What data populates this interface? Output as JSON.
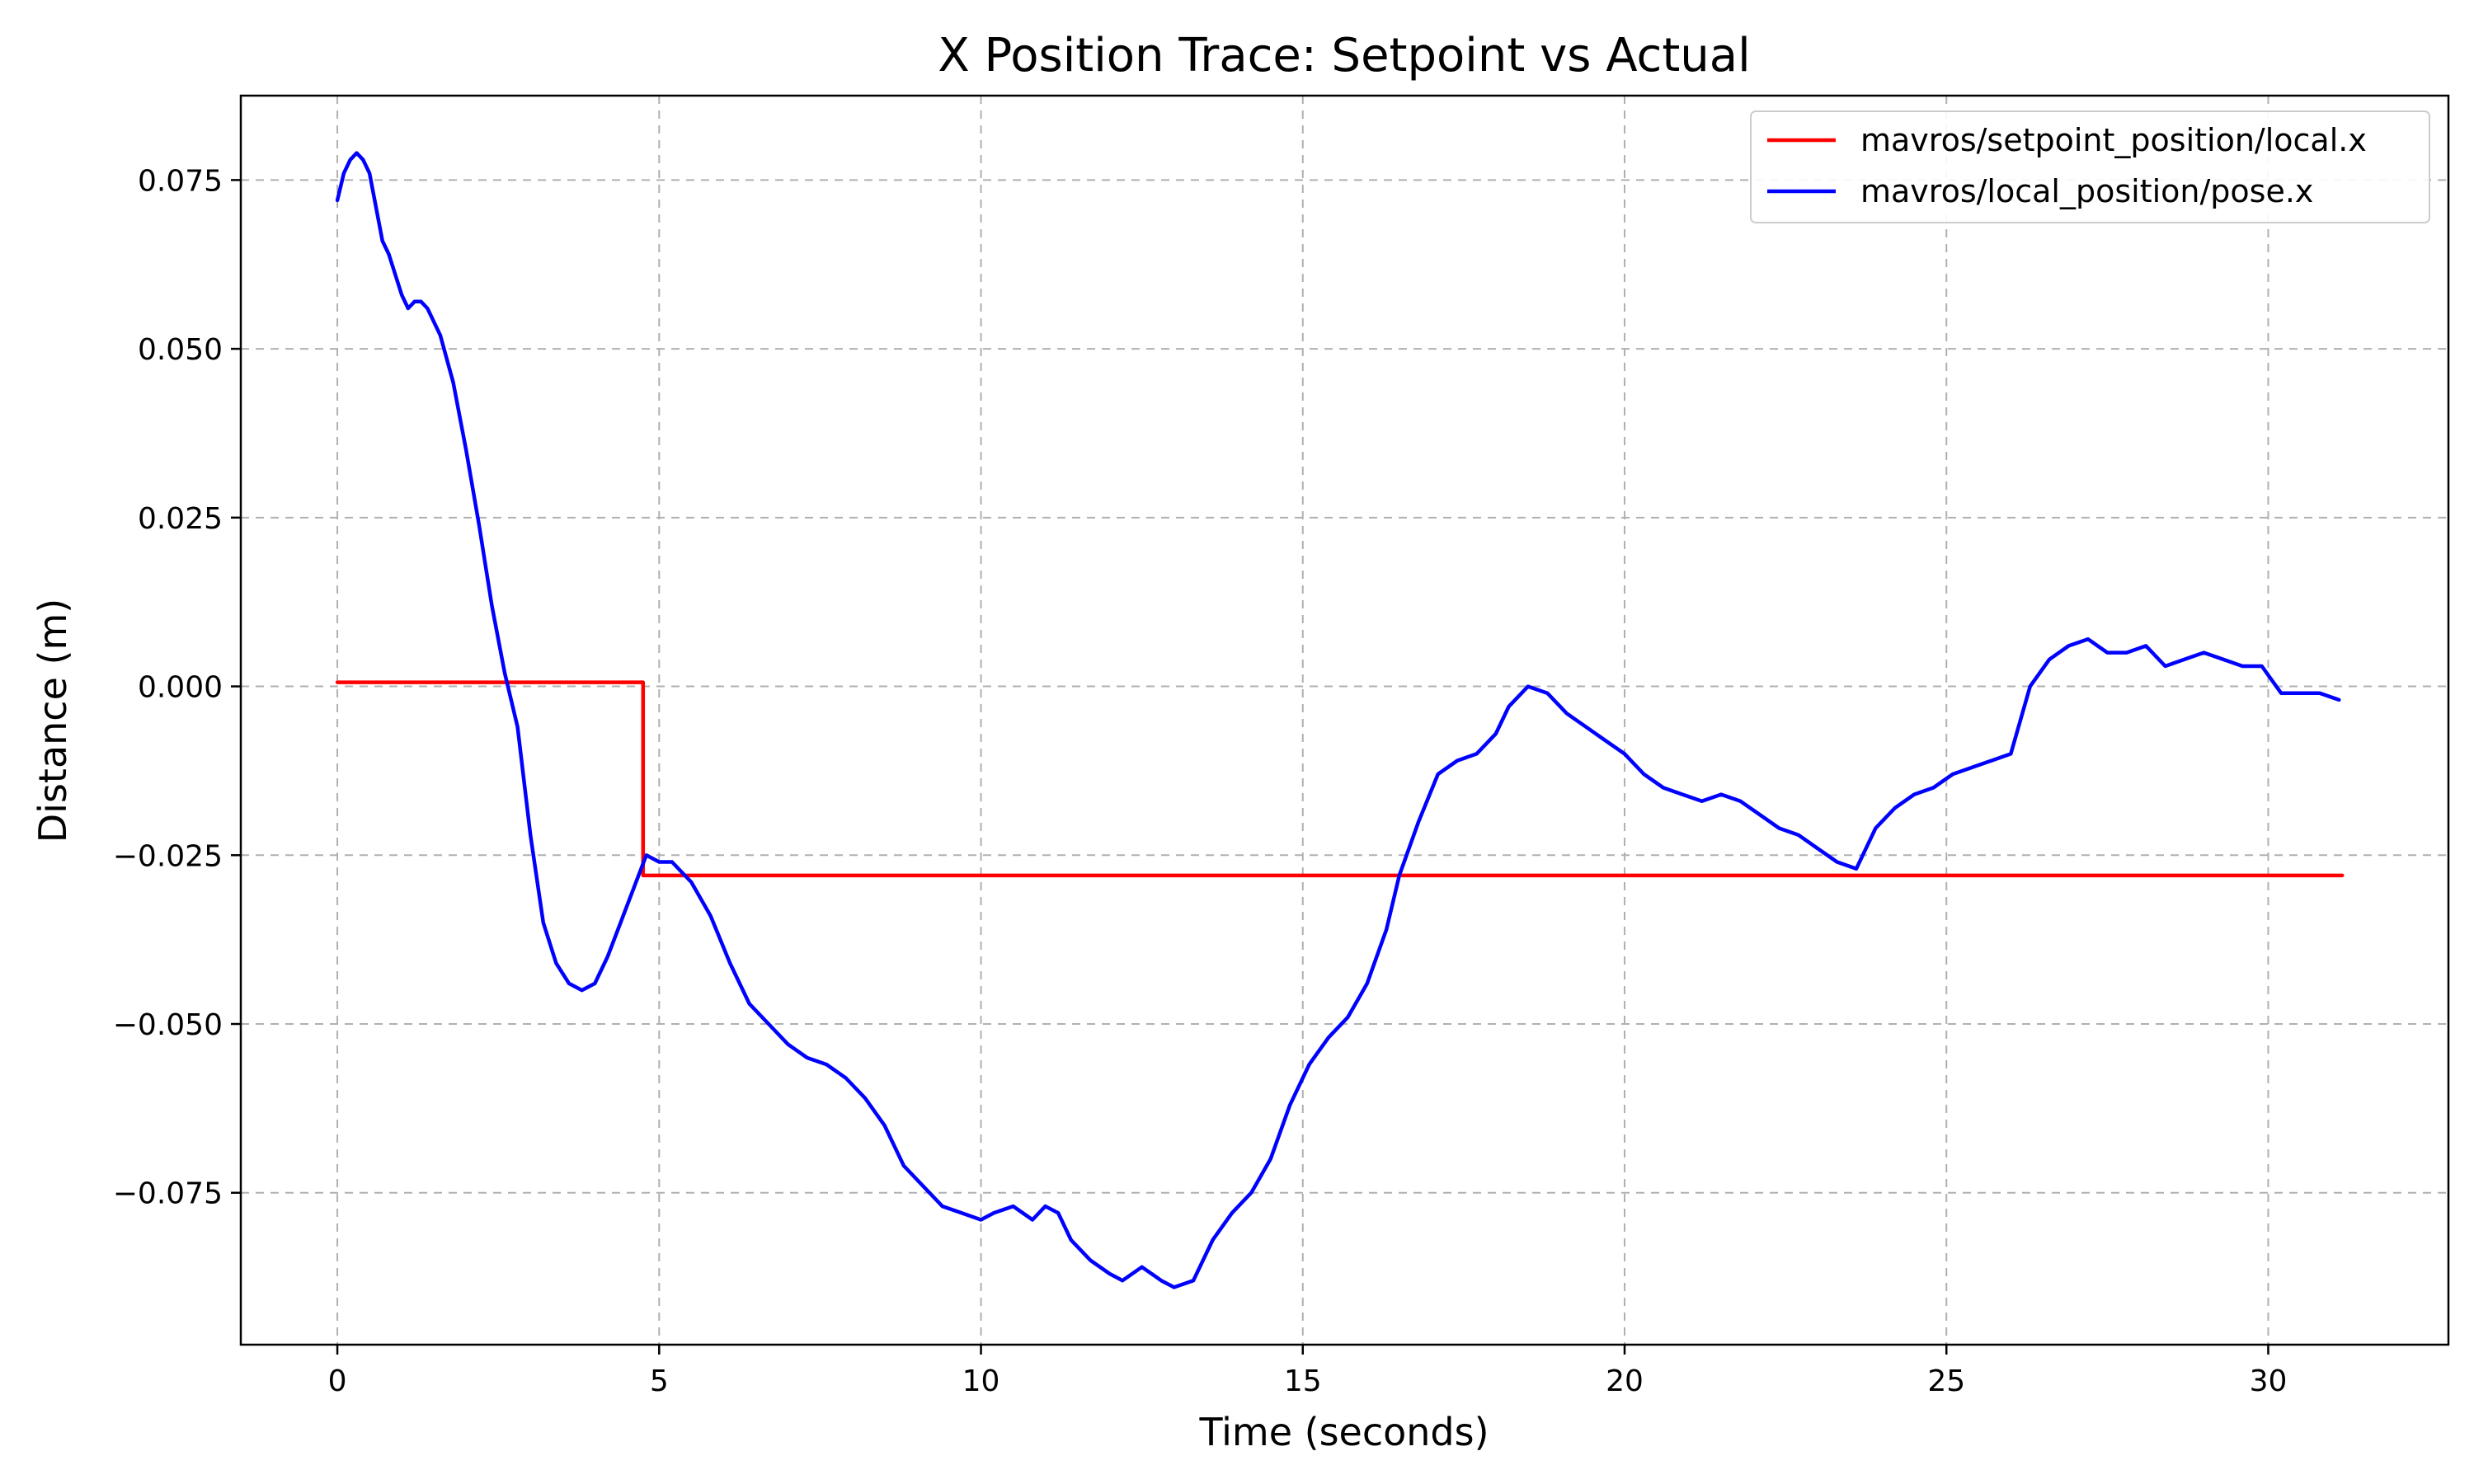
{
  "chart_data": {
    "type": "line",
    "title": "X Position Trace: Setpoint vs Actual",
    "xlabel": "Time (seconds)",
    "ylabel": "Distance (m)",
    "xlim": [
      -1.5,
      32.8
    ],
    "ylim": [
      -0.0975,
      0.0875
    ],
    "xticks": [
      0,
      5,
      10,
      15,
      20,
      25,
      30
    ],
    "xtick_labels": [
      "0",
      "5",
      "10",
      "15",
      "20",
      "25",
      "30"
    ],
    "yticks": [
      -0.075,
      -0.05,
      -0.025,
      0.0,
      0.025,
      0.05,
      0.075
    ],
    "ytick_labels": [
      "−0.075",
      "−0.050",
      "−0.025",
      "0.000",
      "0.025",
      "0.050",
      "0.075"
    ],
    "grid": true,
    "legend_position": "top-right",
    "series": [
      {
        "name": "mavros/setpoint_position/local.x",
        "color": "#ff0000",
        "x": [
          0.0,
          4.75,
          4.75,
          31.15
        ],
        "y": [
          0.0006,
          0.0006,
          -0.028,
          -0.028
        ]
      },
      {
        "name": "mavros/local_position/pose.x",
        "color": "#0000ff",
        "x": [
          0.0,
          0.1,
          0.2,
          0.3,
          0.4,
          0.5,
          0.6,
          0.7,
          0.8,
          0.9,
          1.0,
          1.1,
          1.2,
          1.3,
          1.4,
          1.5,
          1.6,
          1.8,
          2.0,
          2.2,
          2.4,
          2.6,
          2.8,
          3.0,
          3.2,
          3.4,
          3.6,
          3.8,
          4.0,
          4.2,
          4.4,
          4.6,
          4.8,
          5.0,
          5.2,
          5.5,
          5.8,
          6.1,
          6.4,
          6.7,
          7.0,
          7.3,
          7.6,
          7.9,
          8.2,
          8.5,
          8.8,
          9.1,
          9.4,
          9.7,
          10.0,
          10.2,
          10.5,
          10.8,
          11.0,
          11.2,
          11.4,
          11.7,
          12.0,
          12.2,
          12.5,
          12.8,
          13.0,
          13.3,
          13.6,
          13.9,
          14.2,
          14.5,
          14.8,
          15.1,
          15.4,
          15.7,
          16.0,
          16.3,
          16.5,
          16.8,
          17.1,
          17.4,
          17.7,
          18.0,
          18.2,
          18.5,
          18.8,
          19.1,
          19.4,
          19.7,
          20.0,
          20.3,
          20.6,
          20.9,
          21.2,
          21.5,
          21.8,
          22.1,
          22.4,
          22.7,
          23.0,
          23.3,
          23.6,
          23.9,
          24.2,
          24.5,
          24.8,
          25.1,
          25.4,
          25.7,
          26.0,
          26.3,
          26.6,
          26.9,
          27.2,
          27.5,
          27.8,
          28.1,
          28.4,
          28.7,
          29.0,
          29.3,
          29.6,
          29.9,
          30.2,
          30.5,
          30.8,
          31.1
        ],
        "y": [
          0.072,
          0.076,
          0.078,
          0.079,
          0.078,
          0.076,
          0.071,
          0.066,
          0.064,
          0.061,
          0.058,
          0.056,
          0.057,
          0.057,
          0.056,
          0.054,
          0.052,
          0.045,
          0.035,
          0.024,
          0.012,
          0.002,
          -0.006,
          -0.022,
          -0.035,
          -0.041,
          -0.044,
          -0.045,
          -0.044,
          -0.04,
          -0.035,
          -0.03,
          -0.025,
          -0.026,
          -0.026,
          -0.029,
          -0.034,
          -0.041,
          -0.047,
          -0.05,
          -0.053,
          -0.055,
          -0.056,
          -0.058,
          -0.061,
          -0.065,
          -0.071,
          -0.074,
          -0.077,
          -0.078,
          -0.079,
          -0.078,
          -0.077,
          -0.079,
          -0.077,
          -0.078,
          -0.082,
          -0.085,
          -0.087,
          -0.088,
          -0.086,
          -0.088,
          -0.089,
          -0.088,
          -0.082,
          -0.078,
          -0.075,
          -0.07,
          -0.062,
          -0.056,
          -0.052,
          -0.049,
          -0.044,
          -0.036,
          -0.028,
          -0.02,
          -0.013,
          -0.011,
          -0.01,
          -0.007,
          -0.003,
          0.0,
          -0.001,
          -0.004,
          -0.006,
          -0.008,
          -0.01,
          -0.013,
          -0.015,
          -0.016,
          -0.017,
          -0.016,
          -0.017,
          -0.019,
          -0.021,
          -0.022,
          -0.024,
          -0.026,
          -0.027,
          -0.021,
          -0.018,
          -0.016,
          -0.015,
          -0.013,
          -0.012,
          -0.011,
          -0.01,
          0.0,
          0.004,
          0.006,
          0.007,
          0.005,
          0.005,
          0.006,
          0.003,
          0.004,
          0.005,
          0.004,
          0.003,
          0.003,
          -0.001,
          -0.001,
          -0.001,
          -0.002
        ]
      }
    ]
  }
}
